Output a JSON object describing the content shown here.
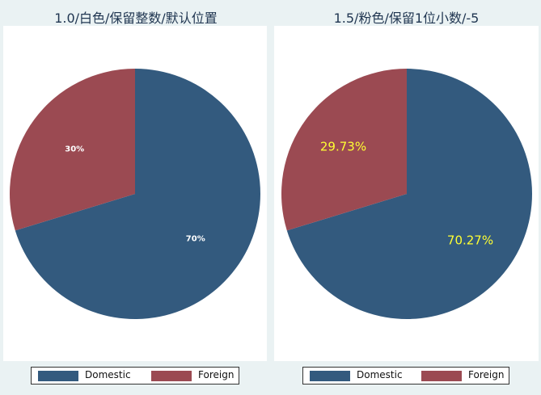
{
  "colors": {
    "domestic": "#335a7e",
    "foreign": "#9b4a52",
    "label_white": "#ffffff",
    "label_yellow": "#ffff33"
  },
  "chart_data": [
    {
      "type": "pie",
      "title": "1.0/白色/保留整数/默认位置",
      "slices": [
        {
          "name": "Domestic",
          "value": 70.27,
          "label": "70%"
        },
        {
          "name": "Foreign",
          "value": 29.73,
          "label": "30%"
        }
      ],
      "legend": {
        "placement": "bottom",
        "entries": [
          "Domestic",
          "Foreign"
        ]
      }
    },
    {
      "type": "pie",
      "title": "1.5/粉色/保留1位小数/-5",
      "slices": [
        {
          "name": "Domestic",
          "value": 70.27,
          "label": "70.27%"
        },
        {
          "name": "Foreign",
          "value": 29.73,
          "label": "29.73%"
        }
      ],
      "legend": {
        "placement": "bottom",
        "entries": [
          "Domestic",
          "Foreign"
        ]
      }
    }
  ]
}
